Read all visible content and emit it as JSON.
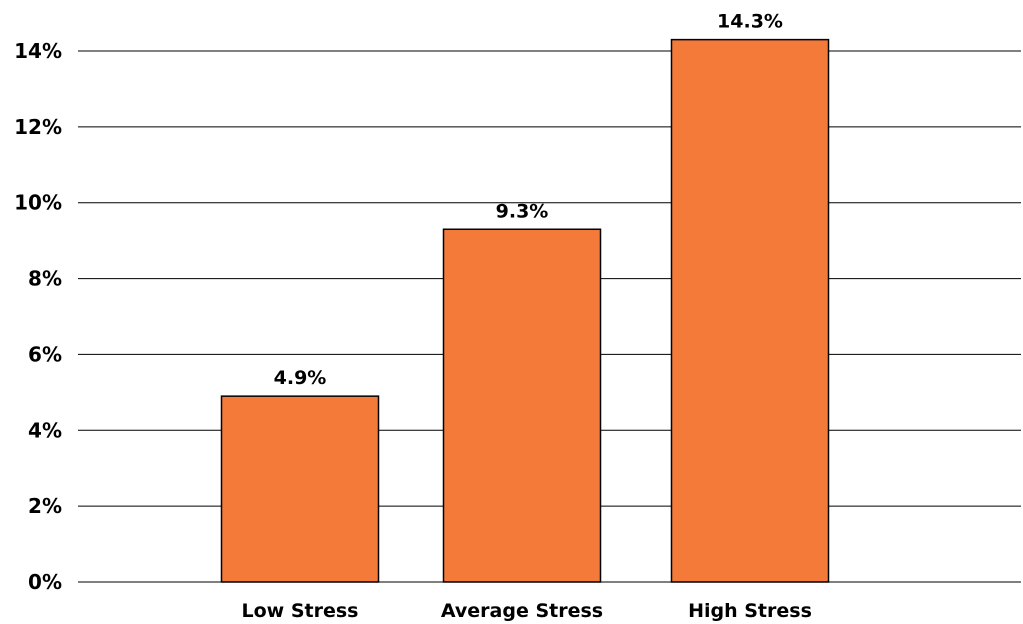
{
  "chart_data": {
    "type": "bar",
    "categories": [
      "Low Stress",
      "Average Stress",
      "High Stress"
    ],
    "values": [
      4.9,
      9.3,
      14.3
    ],
    "data_labels": [
      "4.9%",
      "9.3%",
      "14.3%"
    ],
    "y_ticks": [
      0,
      2,
      4,
      6,
      8,
      10,
      12,
      14
    ],
    "y_tick_labels": [
      "0%",
      "2%",
      "4%",
      "6%",
      "8%",
      "10%",
      "12%",
      "14%"
    ],
    "ylim": [
      0,
      14
    ],
    "title": "",
    "xlabel": "",
    "ylabel": "",
    "grid": true,
    "bar_color": "#F47A3A"
  }
}
